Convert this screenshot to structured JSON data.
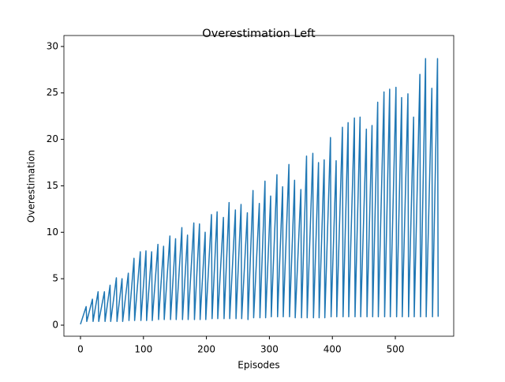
{
  "chart_data": {
    "type": "line",
    "title": "Overestimation Left",
    "xlabel": "Episodes",
    "ylabel": "Overestimation",
    "xlim": [
      -26.3,
      592.7
    ],
    "ylim": [
      -1.19,
      31.18
    ],
    "xticks": [
      0,
      100,
      200,
      300,
      400,
      500
    ],
    "yticks": [
      0,
      5,
      10,
      15,
      20,
      25,
      30
    ],
    "series": [
      {
        "color": "#1f77b4",
        "x": [
          0,
          9,
          10,
          19,
          20,
          28,
          29,
          38,
          39,
          47,
          48,
          57,
          58,
          66,
          67,
          76,
          77,
          85,
          86,
          95,
          96,
          104,
          105,
          113,
          114,
          123,
          124,
          132,
          133,
          142,
          143,
          151,
          152,
          161,
          162,
          170,
          171,
          180,
          181,
          189,
          190,
          198,
          199,
          208,
          209,
          217,
          218,
          227,
          228,
          236,
          237,
          246,
          247,
          255,
          256,
          265,
          266,
          274,
          275,
          284,
          285,
          293,
          294,
          302,
          303,
          312,
          313,
          321,
          322,
          331,
          332,
          340,
          341,
          350,
          351,
          359,
          360,
          369,
          370,
          378,
          379,
          387,
          388,
          397,
          398,
          406,
          407,
          416,
          417,
          425,
          426,
          435,
          436,
          444,
          445,
          454,
          455,
          463,
          464,
          472,
          473,
          482,
          483,
          491,
          492,
          501,
          502,
          510,
          511,
          520,
          521,
          529,
          530,
          539,
          540,
          548,
          549,
          558,
          559,
          567,
          568
        ],
        "values": [
          0.1,
          2.0,
          0.4,
          2.8,
          0.4,
          3.6,
          0.4,
          3.6,
          0.4,
          4.3,
          0.4,
          5.1,
          0.4,
          5.0,
          0.4,
          5.6,
          0.5,
          7.2,
          0.5,
          7.9,
          0.5,
          8.0,
          0.5,
          7.9,
          0.5,
          8.7,
          0.6,
          8.5,
          0.6,
          9.6,
          0.6,
          9.3,
          0.6,
          10.5,
          0.6,
          9.7,
          0.6,
          11.0,
          0.6,
          10.9,
          0.6,
          10.0,
          0.6,
          11.9,
          0.7,
          12.2,
          0.7,
          11.6,
          0.7,
          13.2,
          0.7,
          12.4,
          0.7,
          13.0,
          0.7,
          12.1,
          0.6,
          14.5,
          0.8,
          13.1,
          0.8,
          15.5,
          0.8,
          13.9,
          0.9,
          16.2,
          0.9,
          14.9,
          0.9,
          17.3,
          0.9,
          15.6,
          0.8,
          14.6,
          0.8,
          18.2,
          0.8,
          18.5,
          0.8,
          17.5,
          0.8,
          17.8,
          0.8,
          20.2,
          0.9,
          17.7,
          0.9,
          21.3,
          0.9,
          21.8,
          0.9,
          22.3,
          0.9,
          22.4,
          0.9,
          21.1,
          0.9,
          21.5,
          0.9,
          24.0,
          0.9,
          25.1,
          0.9,
          25.4,
          0.9,
          25.6,
          0.9,
          24.5,
          0.9,
          24.9,
          0.9,
          22.4,
          0.9,
          27.0,
          0.9,
          28.7,
          0.9,
          25.5,
          0.9,
          28.7,
          0.9
        ]
      }
    ]
  }
}
